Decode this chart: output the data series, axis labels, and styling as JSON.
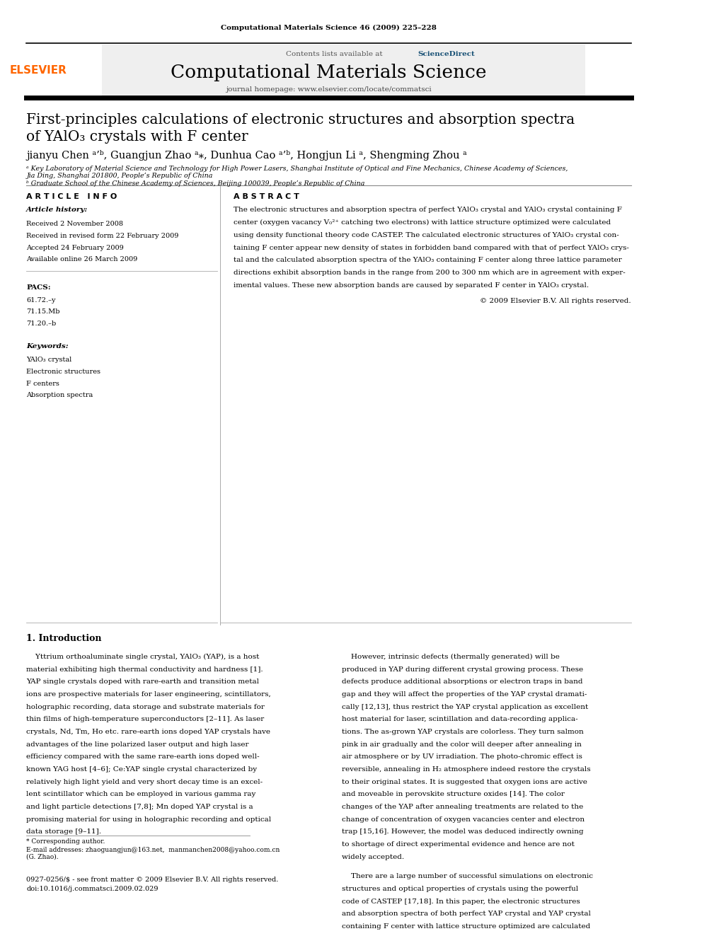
{
  "journal_ref": "Computational Materials Science 46 (2009) 225–228",
  "contents_line": "Contents lists available at ",
  "sciencedirect": "ScienceDirect",
  "journal_name": "Computational Materials Science",
  "journal_homepage": "journal homepage: www.elsevier.com/locate/commatsci",
  "title_line1": "First-principles calculations of electronic structures and absorption spectra",
  "title_line2": "of YAlO₃ crystals with F center",
  "authors": "jianyu Chen ᵃ’ᵇ, Guangjun Zhao ᵃ⁎, Dunhua Cao ᵃ’ᵇ, Hongjun Li ᵃ, Shengming Zhou ᵃ",
  "affil_a": "ᵃ Key Laboratory of Material Science and Technology for High Power Lasers, Shanghai Institute of Optical and Fine Mechanics, Chinese Academy of Sciences,",
  "affil_a2": "Jia Ding, Shanghai 201800, People’s Republic of China",
  "affil_b": "ᵇ Graduate School of the Chinese Academy of Sciences, Beijing 100039, People’s Republic of China",
  "section_article_info": "A R T I C L E   I N F O",
  "section_abstract": "A B S T R A C T",
  "article_history_label": "Article history:",
  "received": "Received 2 November 2008",
  "received_revised": "Received in revised form 22 February 2009",
  "accepted": "Accepted 24 February 2009",
  "available": "Available online 26 March 2009",
  "pacs_label": "PACS:",
  "pacs1": "61.72.–y",
  "pacs2": "71.15.Mb",
  "pacs3": "71.20.–b",
  "keywords_label": "Keywords:",
  "kw1": "YAlO₃ crystal",
  "kw2": "Electronic structures",
  "kw3": "F centers",
  "kw4": "Absorption spectra",
  "copyright": "© 2009 Elsevier B.V. All rights reserved.",
  "section_intro": "1. Introduction",
  "corresponding_author_note": "* Corresponding author.",
  "email_note": "E-mail addresses: zhaoguangjun@163.net,  manmanchen2008@yahoo.com.cn",
  "email_note2": "(G. Zhao).",
  "footer_line1": "0927-0256/$ - see front matter © 2009 Elsevier B.V. All rights reserved.",
  "footer_line2": "doi:10.1016/j.commatsci.2009.02.029",
  "bg_color": "#ffffff",
  "elsevier_color": "#ff6600",
  "sciencedirect_color": "#1a5276"
}
